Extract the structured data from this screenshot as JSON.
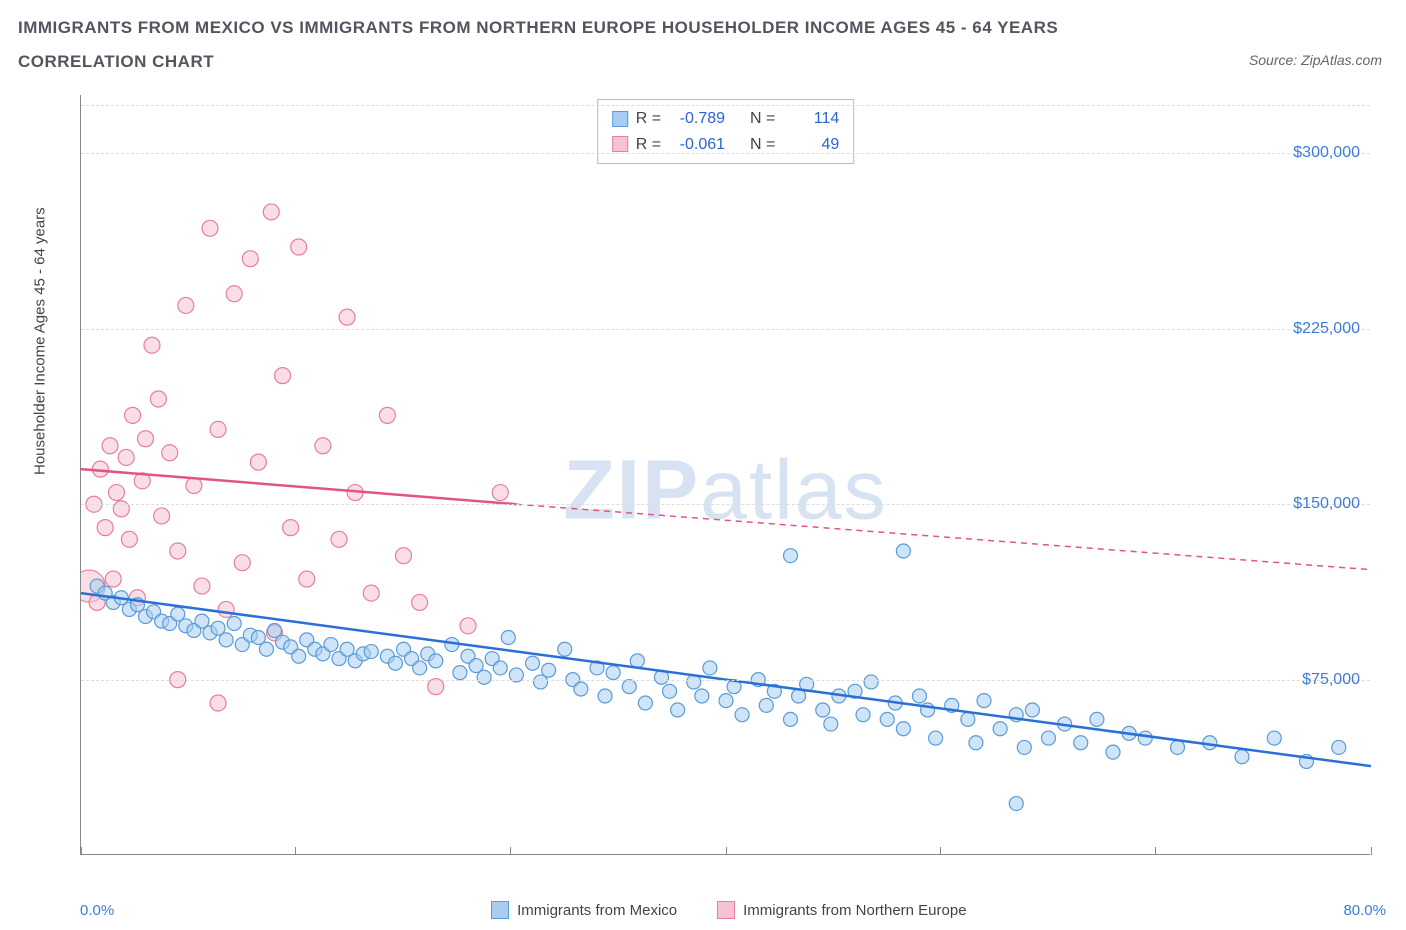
{
  "title_line1": "IMMIGRANTS FROM MEXICO VS IMMIGRANTS FROM NORTHERN EUROPE HOUSEHOLDER INCOME AGES 45 - 64 YEARS",
  "title_line2": "CORRELATION CHART",
  "source_prefix": "Source: ",
  "source_name": "ZipAtlas.com",
  "ylabel": "Householder Income Ages 45 - 64 years",
  "watermark_bold": "ZIP",
  "watermark_light": "atlas",
  "chart": {
    "type": "scatter",
    "xlim": [
      0,
      80
    ],
    "ylim": [
      0,
      325000
    ],
    "xtick_positions": [
      0,
      13.3,
      26.6,
      40,
      53.3,
      66.6,
      80
    ],
    "ytick_values": [
      75000,
      150000,
      225000,
      300000
    ],
    "ytick_labels": [
      "$75,000",
      "$150,000",
      "$225,000",
      "$300,000"
    ],
    "xaxis_left_label": "0.0%",
    "xaxis_right_label": "80.0%",
    "grid_color": "#dddddd",
    "axis_color": "#888888",
    "background": "#ffffff",
    "tick_label_color": "#3b7dd8",
    "series": {
      "mexico": {
        "label": "Immigrants from Mexico",
        "fill": "#a8cdf0",
        "stroke": "#5a9bd8",
        "line_color": "#2a6fd6",
        "R": "-0.789",
        "N": "114",
        "regression": {
          "x1": 0,
          "y1": 112000,
          "x2": 80,
          "y2": 38000,
          "dashed_from": 80
        },
        "points": [
          [
            1,
            115000,
            7
          ],
          [
            1.5,
            112000,
            7
          ],
          [
            2,
            108000,
            7
          ],
          [
            2.5,
            110000,
            7
          ],
          [
            3,
            105000,
            7
          ],
          [
            3.5,
            107000,
            7
          ],
          [
            4,
            102000,
            7
          ],
          [
            4.5,
            104000,
            7
          ],
          [
            5,
            100000,
            7
          ],
          [
            5.5,
            99000,
            7
          ],
          [
            6,
            103000,
            7
          ],
          [
            6.5,
            98000,
            7
          ],
          [
            7,
            96000,
            7
          ],
          [
            7.5,
            100000,
            7
          ],
          [
            8,
            95000,
            7
          ],
          [
            8.5,
            97000,
            7
          ],
          [
            9,
            92000,
            7
          ],
          [
            9.5,
            99000,
            7
          ],
          [
            10,
            90000,
            7
          ],
          [
            10.5,
            94000,
            7
          ],
          [
            11,
            93000,
            7
          ],
          [
            11.5,
            88000,
            7
          ],
          [
            12,
            96000,
            7
          ],
          [
            12.5,
            91000,
            7
          ],
          [
            13,
            89000,
            7
          ],
          [
            13.5,
            85000,
            7
          ],
          [
            14,
            92000,
            7
          ],
          [
            14.5,
            88000,
            7
          ],
          [
            15,
            86000,
            7
          ],
          [
            15.5,
            90000,
            7
          ],
          [
            16,
            84000,
            7
          ],
          [
            16.5,
            88000,
            7
          ],
          [
            17,
            83000,
            7
          ],
          [
            17.5,
            86000,
            7
          ],
          [
            18,
            87000,
            7
          ],
          [
            19,
            85000,
            7
          ],
          [
            19.5,
            82000,
            7
          ],
          [
            20,
            88000,
            7
          ],
          [
            20.5,
            84000,
            7
          ],
          [
            21,
            80000,
            7
          ],
          [
            21.5,
            86000,
            7
          ],
          [
            22,
            83000,
            7
          ],
          [
            23,
            90000,
            7
          ],
          [
            23.5,
            78000,
            7
          ],
          [
            24,
            85000,
            7
          ],
          [
            24.5,
            81000,
            7
          ],
          [
            25,
            76000,
            7
          ],
          [
            25.5,
            84000,
            7
          ],
          [
            26,
            80000,
            7
          ],
          [
            26.5,
            93000,
            7
          ],
          [
            27,
            77000,
            7
          ],
          [
            28,
            82000,
            7
          ],
          [
            28.5,
            74000,
            7
          ],
          [
            29,
            79000,
            7
          ],
          [
            30,
            88000,
            7
          ],
          [
            30.5,
            75000,
            7
          ],
          [
            31,
            71000,
            7
          ],
          [
            32,
            80000,
            7
          ],
          [
            32.5,
            68000,
            7
          ],
          [
            33,
            78000,
            7
          ],
          [
            34,
            72000,
            7
          ],
          [
            34.5,
            83000,
            7
          ],
          [
            35,
            65000,
            7
          ],
          [
            36,
            76000,
            7
          ],
          [
            36.5,
            70000,
            7
          ],
          [
            37,
            62000,
            7
          ],
          [
            38,
            74000,
            7
          ],
          [
            38.5,
            68000,
            7
          ],
          [
            39,
            80000,
            7
          ],
          [
            40,
            66000,
            7
          ],
          [
            40.5,
            72000,
            7
          ],
          [
            41,
            60000,
            7
          ],
          [
            42,
            75000,
            7
          ],
          [
            42.5,
            64000,
            7
          ],
          [
            43,
            70000,
            7
          ],
          [
            44,
            58000,
            7
          ],
          [
            44.5,
            68000,
            7
          ],
          [
            45,
            73000,
            7
          ],
          [
            46,
            62000,
            7
          ],
          [
            46.5,
            56000,
            7
          ],
          [
            47,
            68000,
            7
          ],
          [
            48,
            70000,
            7
          ],
          [
            48.5,
            60000,
            7
          ],
          [
            49,
            74000,
            7
          ],
          [
            44,
            128000,
            7
          ],
          [
            50,
            58000,
            7
          ],
          [
            50.5,
            65000,
            7
          ],
          [
            51,
            54000,
            7
          ],
          [
            52,
            68000,
            7
          ],
          [
            52.5,
            62000,
            7
          ],
          [
            53,
            50000,
            7
          ],
          [
            54,
            64000,
            7
          ],
          [
            55,
            58000,
            7
          ],
          [
            55.5,
            48000,
            7
          ],
          [
            56,
            66000,
            7
          ],
          [
            57,
            54000,
            7
          ],
          [
            58,
            60000,
            7
          ],
          [
            58.5,
            46000,
            7
          ],
          [
            59,
            62000,
            7
          ],
          [
            60,
            50000,
            7
          ],
          [
            51,
            130000,
            7
          ],
          [
            61,
            56000,
            7
          ],
          [
            62,
            48000,
            7
          ],
          [
            63,
            58000,
            7
          ],
          [
            64,
            44000,
            7
          ],
          [
            65,
            52000,
            7
          ],
          [
            66,
            50000,
            7
          ],
          [
            68,
            46000,
            7
          ],
          [
            58,
            22000,
            7
          ],
          [
            70,
            48000,
            7
          ],
          [
            72,
            42000,
            7
          ],
          [
            74,
            50000,
            7
          ],
          [
            76,
            40000,
            7
          ],
          [
            78,
            46000,
            7
          ]
        ]
      },
      "neurope": {
        "label": "Immigrants from Northern Europe",
        "fill": "#f6c3d0",
        "stroke": "#e77ea0",
        "line_color": "#e2557f",
        "R": "-0.061",
        "N": "49",
        "regression": {
          "x1": 0,
          "y1": 165000,
          "x2": 27,
          "y2": 150000,
          "dash_to_x": 80,
          "dash_to_y": 122000
        },
        "points": [
          [
            0.5,
            115000,
            16
          ],
          [
            0.8,
            150000,
            8
          ],
          [
            1,
            108000,
            8
          ],
          [
            1.2,
            165000,
            8
          ],
          [
            1.5,
            140000,
            8
          ],
          [
            1.8,
            175000,
            8
          ],
          [
            2,
            118000,
            8
          ],
          [
            2.2,
            155000,
            8
          ],
          [
            2.5,
            148000,
            8
          ],
          [
            2.8,
            170000,
            8
          ],
          [
            3,
            135000,
            8
          ],
          [
            3.2,
            188000,
            8
          ],
          [
            3.5,
            110000,
            8
          ],
          [
            3.8,
            160000,
            8
          ],
          [
            4,
            178000,
            8
          ],
          [
            4.4,
            218000,
            8
          ],
          [
            4.8,
            195000,
            8
          ],
          [
            5,
            145000,
            8
          ],
          [
            5.5,
            172000,
            8
          ],
          [
            6,
            130000,
            8
          ],
          [
            6.5,
            235000,
            8
          ],
          [
            7,
            158000,
            8
          ],
          [
            7.5,
            115000,
            8
          ],
          [
            8,
            268000,
            8
          ],
          [
            8.5,
            182000,
            8
          ],
          [
            9,
            105000,
            8
          ],
          [
            9.5,
            240000,
            8
          ],
          [
            10,
            125000,
            8
          ],
          [
            10.5,
            255000,
            8
          ],
          [
            11,
            168000,
            8
          ],
          [
            11.8,
            275000,
            8
          ],
          [
            12,
            95000,
            8
          ],
          [
            12.5,
            205000,
            8
          ],
          [
            13,
            140000,
            8
          ],
          [
            13.5,
            260000,
            8
          ],
          [
            14,
            118000,
            8
          ],
          [
            15,
            175000,
            8
          ],
          [
            16,
            135000,
            8
          ],
          [
            16.5,
            230000,
            8
          ],
          [
            17,
            155000,
            8
          ],
          [
            18,
            112000,
            8
          ],
          [
            19,
            188000,
            8
          ],
          [
            20,
            128000,
            8
          ],
          [
            21,
            108000,
            8
          ],
          [
            22,
            72000,
            8
          ],
          [
            24,
            98000,
            8
          ],
          [
            26,
            155000,
            8
          ],
          [
            8.5,
            65000,
            8
          ],
          [
            6,
            75000,
            8
          ]
        ]
      }
    }
  },
  "legend": {
    "r_label": "R =",
    "n_label": "N ="
  }
}
